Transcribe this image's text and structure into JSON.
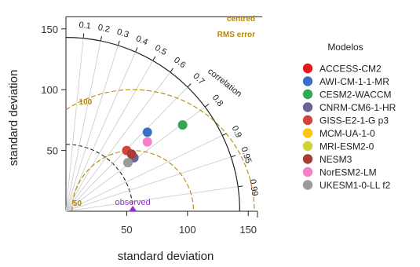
{
  "chart_data": {
    "type": "scatter",
    "subtype": "taylor-diagram",
    "xlabel": "standard deviation",
    "ylabel": "standard deviation",
    "xlim": [
      0,
      155
    ],
    "ylim": [
      0,
      160
    ],
    "xticks": [
      50,
      100,
      150
    ],
    "yticks": [
      50,
      100,
      150
    ],
    "observed": {
      "sd": 55,
      "label": "observed",
      "color": "#9932cc"
    },
    "correlation_label": "correlation",
    "correlation_ticks": [
      0.1,
      0.2,
      0.3,
      0.4,
      0.5,
      0.6,
      0.7,
      0.8,
      0.9,
      0.95,
      0.99
    ],
    "correlation_tick_labels": [
      "0.1",
      "0.2",
      "0.3",
      "0.4",
      "0.5",
      "0.6",
      "0.7",
      "0.8",
      "0.9",
      "0.95",
      "0.99"
    ],
    "correlation_arc_sd": 143,
    "rms_title": [
      "centred",
      "RMS error"
    ],
    "rms_contours": [
      50,
      100
    ],
    "rms_contour_labels": [
      "50",
      "100"
    ],
    "rms_color": "#b8860b",
    "sd_arcs": [
      55,
      143
    ],
    "legend_title": "Modelos",
    "legend_position": "right",
    "series": [
      {
        "name": "ACCESS-CM2",
        "color": "#e31a1c",
        "x": null,
        "y": null
      },
      {
        "name": "AWI-CM-1-1-MR",
        "color": "#3a6fc4",
        "x": 67,
        "y": 65
      },
      {
        "name": "CESM2-WACCM",
        "color": "#33a852",
        "x": 96,
        "y": 71
      },
      {
        "name": "CNRM-CM6-1-HR",
        "color": "#6e6392",
        "x": 56,
        "y": 44
      },
      {
        "name": "GISS-E2-1-G p3",
        "color": "#d0463f",
        "x": 50,
        "y": 50
      },
      {
        "name": "MCM-UA-1-0",
        "color": "#ffc40d",
        "x": null,
        "y": null
      },
      {
        "name": "MRI-ESM2-0",
        "color": "#cfd23b",
        "x": null,
        "y": null
      },
      {
        "name": "NESM3",
        "color": "#a93b35",
        "x": 54,
        "y": 47
      },
      {
        "name": "NorESM2-LM",
        "color": "#f57fc8",
        "x": 67,
        "y": 57
      },
      {
        "name": "UKESM1-0-LL f2",
        "color": "#9a9a9a",
        "x": 51,
        "y": 40
      }
    ]
  }
}
